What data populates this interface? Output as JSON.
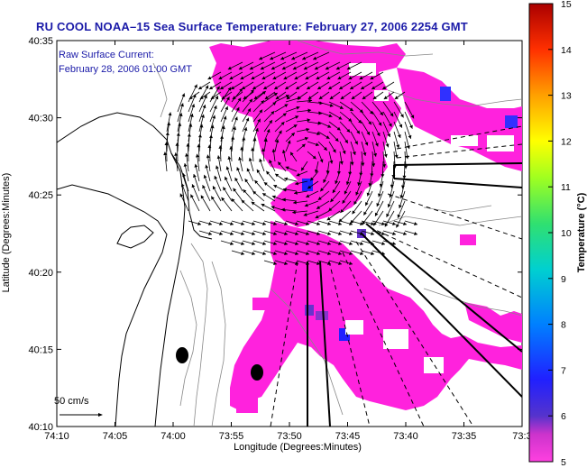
{
  "title": "RU COOL  NOAA–15  Sea Surface Temperature:  February 27, 2006 2254 GMT",
  "annotation": {
    "line1": "Raw Surface Current:",
    "line2": "February 28, 2006 01:00 GMT"
  },
  "scale_label": "50 cm/s",
  "x_axis": {
    "title": "Longitude (Degrees:Minutes)",
    "ticks": [
      "74:10",
      "74:05",
      "74:00",
      "73:55",
      "73:50",
      "73:45",
      "73:40",
      "73:35",
      "73:3"
    ]
  },
  "y_axis": {
    "title": "Latitude (Degrees:Minutes)",
    "ticks": [
      "40:35",
      "40:30",
      "40:25",
      "40:20",
      "40:15",
      "40:10"
    ]
  },
  "colorbar": {
    "title": "Temperature (°C)",
    "ticks": [
      "15",
      "14",
      "13",
      "12",
      "11",
      "10",
      "9",
      "8",
      "7",
      "6",
      "5"
    ],
    "range": [
      5,
      15
    ]
  },
  "colors": {
    "sst_low": "#ff22dd",
    "title_blue": "#1a1aa8"
  }
}
